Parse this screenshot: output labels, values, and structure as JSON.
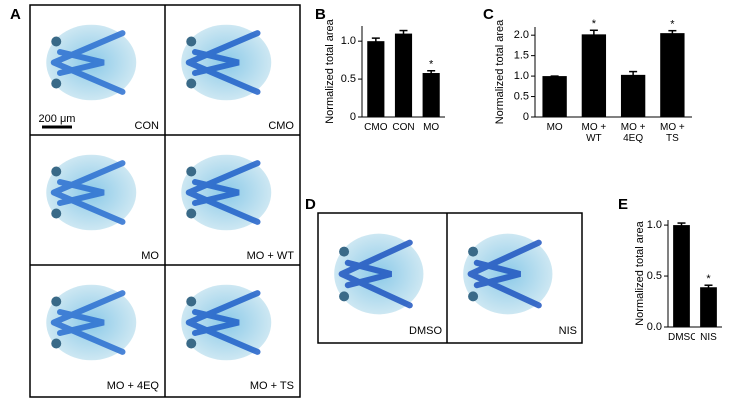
{
  "panel_labels": [
    "A",
    "B",
    "C",
    "D",
    "E"
  ],
  "images": {
    "A": {
      "captions": [
        "CON",
        "CMO",
        "MO",
        "MO + WT",
        "MO + 4EQ",
        "MO + TS"
      ],
      "scale_bar": "200 μm"
    },
    "D": {
      "captions": [
        "DMSO",
        "NIS"
      ]
    }
  },
  "chart_data": [
    {
      "type": "bar",
      "y_label": "Normalized total area",
      "categories": [
        "CMO",
        "CON",
        "MO"
      ],
      "values": [
        1.0,
        1.1,
        0.58
      ],
      "errors": [
        0.04,
        0.04,
        0.03
      ],
      "color": "#000000",
      "ylim": [
        0,
        1.2
      ],
      "yticks": [
        0,
        0.5,
        {
          "value": 1,
          "label": "1.0"
        }
      ],
      "annotations": [
        {
          "text": "*",
          "x": "MO"
        }
      ]
    },
    {
      "type": "bar",
      "y_label": "Normalized total area",
      "categories": [
        "MO",
        "MO + WT",
        "MO + 4EQ",
        "MO + TS"
      ],
      "values": [
        1.0,
        2.02,
        1.03,
        2.05
      ],
      "errors": [
        0,
        0.1,
        0.08,
        0.06
      ],
      "color": "#000000",
      "ylim": [
        0,
        2.2
      ],
      "yticks": [
        0,
        0.5,
        {
          "value": 1,
          "label": "1.0"
        },
        1.5,
        {
          "value": 2,
          "label": "2.0"
        }
      ],
      "annotations": [
        {
          "text": "*",
          "x": "MO + WT"
        },
        {
          "text": "*",
          "x": "MO + TS"
        }
      ]
    },
    {
      "type": "bar",
      "y_label": "Normalized total area",
      "categories": [
        "DMSO",
        "NIS"
      ],
      "values": [
        1.0,
        0.39
      ],
      "errors": [
        0.02,
        0.02
      ],
      "color": "#000000",
      "ylim": [
        0,
        1.05
      ],
      "yticks": [
        {
          "value": 0,
          "label": "0.0"
        },
        0.5,
        {
          "value": 1,
          "label": "1.0"
        }
      ],
      "annotations": [
        {
          "text": "*",
          "x": "NIS"
        }
      ]
    }
  ]
}
